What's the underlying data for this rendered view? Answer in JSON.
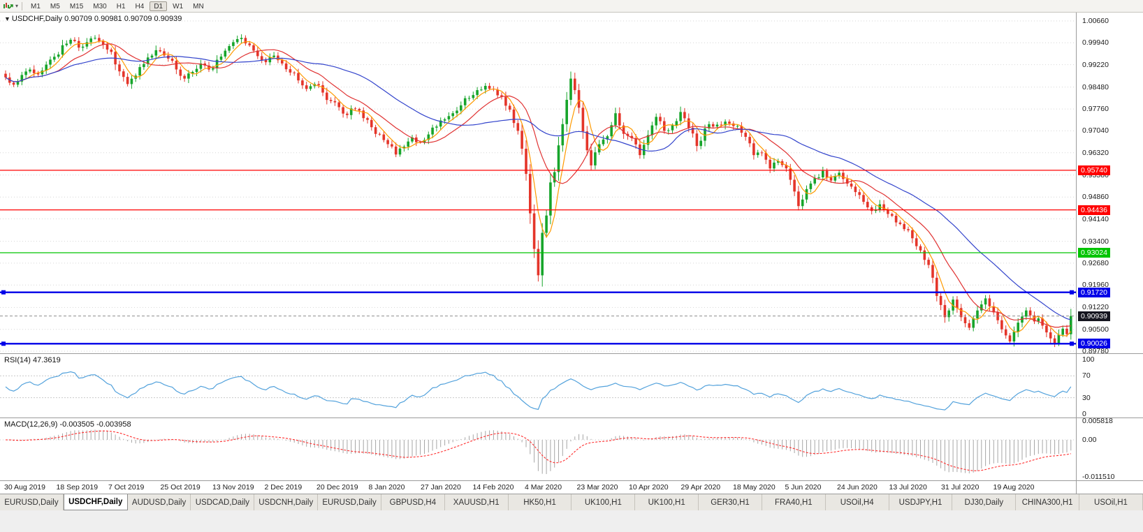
{
  "toolbar": {
    "timeframes": [
      "M1",
      "M5",
      "M15",
      "M30",
      "H1",
      "H4",
      "D1",
      "W1",
      "MN"
    ],
    "active_timeframe": "D1"
  },
  "main_chart": {
    "header": "USDCHF,Daily 0.90709 0.90981 0.90709 0.90939",
    "symbol": "USDCHF,Daily",
    "open": "0.90709",
    "high": "0.90981",
    "low": "0.90709",
    "close": "0.90939",
    "current_price_badge": "0.90939",
    "current_badge_color": "#15151f",
    "price_axis_labels": [
      "1.00660",
      "0.99940",
      "0.99220",
      "0.98480",
      "0.97760",
      "0.97040",
      "0.96320",
      "0.95580",
      "0.94860",
      "0.94140",
      "0.93400",
      "0.92680",
      "0.91960",
      "0.91220",
      "0.90500",
      "0.89780"
    ],
    "levels": [
      {
        "price": 0.9574,
        "label": "0.95740",
        "color": "#ff0000",
        "thick": false
      },
      {
        "price": 0.94436,
        "label": "0.94436",
        "color": "#ff0000",
        "thick": false
      },
      {
        "price": 0.93024,
        "label": "0.93024",
        "color": "#00c400",
        "thick": false
      },
      {
        "price": 0.9172,
        "label": "0.91720",
        "color": "#0000e8",
        "thick": true
      },
      {
        "price": 0.90026,
        "label": "0.90026",
        "color": "#0000e8",
        "thick": true
      }
    ]
  },
  "rsi_panel": {
    "header": "RSI(14) 47.3619",
    "axis_labels": [
      "100",
      "70",
      "30",
      "0"
    ],
    "guides": [
      70,
      30
    ],
    "line_color": "#53a2dc"
  },
  "macd_panel": {
    "header": "MACD(12,26,9) -0.003505 -0.003958",
    "axis_labels": [
      "0.005818",
      "0.00",
      "-0.011510"
    ],
    "histogram_color": "#a6a6a6",
    "signal_color": "#ff2d2d"
  },
  "tabs": [
    {
      "label": "EURUSD,Daily",
      "active": false
    },
    {
      "label": "USDCHF,Daily",
      "active": true
    },
    {
      "label": "AUDUSD,Daily",
      "active": false
    },
    {
      "label": "USDCAD,Daily",
      "active": false
    },
    {
      "label": "USDCNH,Daily",
      "active": false
    },
    {
      "label": "EURUSD,Daily",
      "active": false
    },
    {
      "label": "GBPUSD,H4",
      "active": false
    },
    {
      "label": "XAUUSD,H1",
      "active": false
    },
    {
      "label": "HK50,H1",
      "active": false
    },
    {
      "label": "UK100,H1",
      "active": false
    },
    {
      "label": "UK100,H1",
      "active": false
    },
    {
      "label": "GER30,H1",
      "active": false
    },
    {
      "label": "FRA40,H1",
      "active": false
    },
    {
      "label": "USOil,H4",
      "active": false
    },
    {
      "label": "USDJPY,H1",
      "active": false
    },
    {
      "label": "DJ30,Daily",
      "active": false
    },
    {
      "label": "CHINA300,H1",
      "active": false
    },
    {
      "label": "USOil,H1",
      "active": false
    }
  ],
  "chart_data": {
    "type": "candlestick",
    "symbol": "USDCHF",
    "timeframe": "Daily",
    "x_tick_labels": [
      "30 Aug 2019",
      "18 Sep 2019",
      "7 Oct 2019",
      "25 Oct 2019",
      "13 Nov 2019",
      "2 Dec 2019",
      "20 Dec 2019",
      "8 Jan 2020",
      "27 Jan 2020",
      "14 Feb 2020",
      "4 Mar 2020",
      "23 Mar 2020",
      "10 Apr 2020",
      "29 Apr 2020",
      "18 May 2020",
      "5 Jun 2020",
      "24 Jun 2020",
      "13 Jul 2020",
      "31 Jul 2020",
      "19 Aug 2020"
    ],
    "y_range": [
      0.8978,
      1.0066
    ],
    "current_ohlc": {
      "open": 0.90709,
      "high": 0.90981,
      "low": 0.90709,
      "close": 0.90939
    },
    "horizontal_levels": [
      0.9574,
      0.94436,
      0.93024,
      0.9172,
      0.90026
    ],
    "num_candles": 263,
    "note": "close-price path read off the chart; candles synthesized between anchors",
    "price_anchors": [
      [
        0,
        0.988
      ],
      [
        2,
        0.9856
      ],
      [
        4,
        0.9888
      ],
      [
        6,
        0.9906
      ],
      [
        8,
        0.989
      ],
      [
        10,
        0.9922
      ],
      [
        12,
        0.9948
      ],
      [
        14,
        0.9986
      ],
      [
        16,
        1.0004
      ],
      [
        18,
        0.9978
      ],
      [
        20,
        0.9996
      ],
      [
        22,
        1.001
      ],
      [
        24,
        0.9988
      ],
      [
        26,
        0.9964
      ],
      [
        28,
        0.99
      ],
      [
        30,
        0.9858
      ],
      [
        32,
        0.9886
      ],
      [
        34,
        0.9924
      ],
      [
        36,
        0.9952
      ],
      [
        38,
        0.9966
      ],
      [
        40,
        0.9942
      ],
      [
        42,
        0.9906
      ],
      [
        44,
        0.9876
      ],
      [
        46,
        0.9898
      ],
      [
        48,
        0.9926
      ],
      [
        50,
        0.9906
      ],
      [
        52,
        0.9938
      ],
      [
        54,
        0.9968
      ],
      [
        56,
        0.9996
      ],
      [
        58,
        1.001
      ],
      [
        60,
        0.9986
      ],
      [
        62,
        0.995
      ],
      [
        64,
        0.993
      ],
      [
        66,
        0.9952
      ],
      [
        68,
        0.9926
      ],
      [
        70,
        0.9896
      ],
      [
        72,
        0.987
      ],
      [
        74,
        0.9842
      ],
      [
        76,
        0.9858
      ],
      [
        78,
        0.983
      ],
      [
        80,
        0.9802
      ],
      [
        82,
        0.9782
      ],
      [
        84,
        0.9756
      ],
      [
        86,
        0.9776
      ],
      [
        88,
        0.9746
      ],
      [
        90,
        0.9716
      ],
      [
        92,
        0.9692
      ],
      [
        94,
        0.966
      ],
      [
        96,
        0.9626
      ],
      [
        98,
        0.9652
      ],
      [
        100,
        0.9682
      ],
      [
        102,
        0.9666
      ],
      [
        104,
        0.9692
      ],
      [
        106,
        0.9718
      ],
      [
        108,
        0.9742
      ],
      [
        110,
        0.9762
      ],
      [
        112,
        0.9788
      ],
      [
        114,
        0.9812
      ],
      [
        116,
        0.9838
      ],
      [
        118,
        0.9852
      ],
      [
        120,
        0.984
      ],
      [
        122,
        0.9816
      ],
      [
        124,
        0.9774
      ],
      [
        126,
        0.9704
      ],
      [
        127,
        0.9645
      ],
      [
        128,
        0.9562
      ],
      [
        129,
        0.9432
      ],
      [
        130,
        0.9315
      ],
      [
        131,
        0.9228
      ],
      [
        132,
        0.9368
      ],
      [
        133,
        0.9425
      ],
      [
        134,
        0.9534
      ],
      [
        135,
        0.9568
      ],
      [
        136,
        0.9656
      ],
      [
        137,
        0.9726
      ],
      [
        138,
        0.9806
      ],
      [
        139,
        0.9876
      ],
      [
        140,
        0.9838
      ],
      [
        141,
        0.978
      ],
      [
        142,
        0.9702
      ],
      [
        143,
        0.964
      ],
      [
        144,
        0.959
      ],
      [
        146,
        0.966
      ],
      [
        148,
        0.9686
      ],
      [
        150,
        0.9762
      ],
      [
        152,
        0.9694
      ],
      [
        154,
        0.968
      ],
      [
        156,
        0.9624
      ],
      [
        158,
        0.969
      ],
      [
        160,
        0.975
      ],
      [
        162,
        0.9704
      ],
      [
        164,
        0.9722
      ],
      [
        166,
        0.9766
      ],
      [
        168,
        0.9714
      ],
      [
        170,
        0.9654
      ],
      [
        172,
        0.9712
      ],
      [
        174,
        0.9718
      ],
      [
        176,
        0.9722
      ],
      [
        178,
        0.9728
      ],
      [
        180,
        0.972
      ],
      [
        182,
        0.9684
      ],
      [
        184,
        0.9624
      ],
      [
        186,
        0.9632
      ],
      [
        188,
        0.958
      ],
      [
        190,
        0.9604
      ],
      [
        192,
        0.958
      ],
      [
        194,
        0.9504
      ],
      [
        195,
        0.9456
      ],
      [
        197,
        0.9512
      ],
      [
        199,
        0.9548
      ],
      [
        201,
        0.9572
      ],
      [
        203,
        0.954
      ],
      [
        205,
        0.9566
      ],
      [
        207,
        0.953
      ],
      [
        209,
        0.9502
      ],
      [
        211,
        0.947
      ],
      [
        213,
        0.944
      ],
      [
        215,
        0.9462
      ],
      [
        217,
        0.943
      ],
      [
        219,
        0.9402
      ],
      [
        221,
        0.938
      ],
      [
        223,
        0.935
      ],
      [
        225,
        0.931
      ],
      [
        227,
        0.9262
      ],
      [
        228,
        0.922
      ],
      [
        229,
        0.916
      ],
      [
        230,
        0.913
      ],
      [
        231,
        0.909
      ],
      [
        232,
        0.9112
      ],
      [
        233,
        0.9148
      ],
      [
        234,
        0.912
      ],
      [
        235,
        0.909
      ],
      [
        236,
        0.907
      ],
      [
        237,
        0.9055
      ],
      [
        238,
        0.9086
      ],
      [
        239,
        0.9112
      ],
      [
        240,
        0.9132
      ],
      [
        241,
        0.9152
      ],
      [
        242,
        0.9126
      ],
      [
        243,
        0.9106
      ],
      [
        244,
        0.908
      ],
      [
        245,
        0.905
      ],
      [
        246,
        0.903
      ],
      [
        247,
        0.901
      ],
      [
        248,
        0.9042
      ],
      [
        249,
        0.9072
      ],
      [
        250,
        0.9092
      ],
      [
        251,
        0.9112
      ],
      [
        252,
        0.9096
      ],
      [
        253,
        0.9076
      ],
      [
        254,
        0.9086
      ],
      [
        255,
        0.9062
      ],
      [
        256,
        0.904
      ],
      [
        257,
        0.902
      ],
      [
        258,
        0.9004
      ],
      [
        259,
        0.9032
      ],
      [
        260,
        0.9052
      ],
      [
        261,
        0.9034
      ],
      [
        262,
        0.9094
      ]
    ],
    "colors": {
      "up": "#17a52b",
      "down": "#e4352a"
    },
    "moving_averages": [
      {
        "period": 5,
        "color": "#ff9a00"
      },
      {
        "period": 13,
        "color": "#e03232"
      },
      {
        "period": 34,
        "color": "#3344cc"
      }
    ],
    "indicators": [
      {
        "name": "RSI",
        "period": 14,
        "value": 47.3619,
        "range": [
          0,
          100
        ],
        "guides": [
          70,
          30
        ]
      },
      {
        "name": "MACD",
        "fast": 12,
        "slow": 26,
        "signal": 9,
        "values": [
          -0.003505,
          -0.003958
        ],
        "scale_max": 0.005818,
        "scale_min": -0.01151
      }
    ]
  }
}
